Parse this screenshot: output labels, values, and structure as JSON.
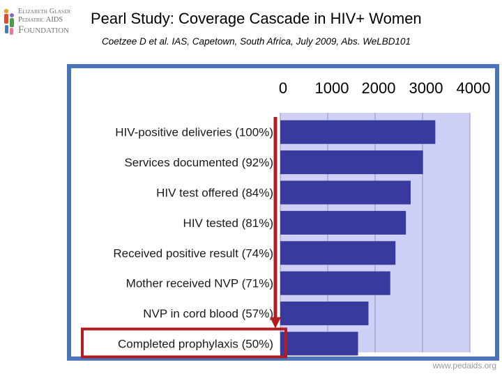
{
  "logo": {
    "line1": "Elizabeth Glaser",
    "line2": "Pediatric AIDS",
    "line3": "Foundation"
  },
  "header": {
    "title": "Pearl Study:  Coverage Cascade in HIV+ Women",
    "subtitle": "Coetzee D et al.  IAS, Capetown, South Africa, July 2009, Abs. WeLBD101"
  },
  "footer": {
    "url": "www.pedaids.org"
  },
  "colors": {
    "bar": "#383a9e",
    "plot_bg": "#cfd0f5",
    "panel": "#4b74b9",
    "highlight": "#b01e23"
  },
  "chart_data": {
    "type": "bar",
    "orientation": "horizontal",
    "title": "",
    "xlabel": "",
    "ylabel": "",
    "xlim": [
      0,
      4000
    ],
    "xticks": [
      "0",
      "1000",
      "2000",
      "3000",
      "4000"
    ],
    "xtick_values": [
      0,
      1000,
      2000,
      3000,
      4000
    ],
    "grid": true,
    "categories": [
      "HIV-positive deliveries (100%)",
      "Services documented (92%)",
      "HIV test offered (84%)",
      "HIV tested (81%)",
      "Received positive result (74%)",
      "Mother received NVP (71%)",
      "NVP in cord blood (57%)",
      "Completed prophylaxis (50%)"
    ],
    "values": [
      3270,
      3010,
      2750,
      2650,
      2430,
      2320,
      1860,
      1640
    ],
    "annotation": "downward arrow from first to last category; last category boxed"
  }
}
